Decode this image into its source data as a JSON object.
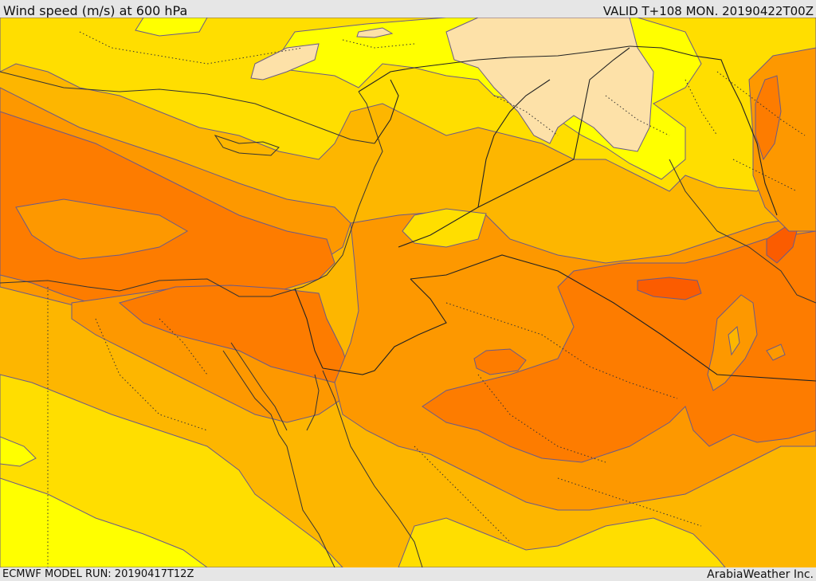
{
  "header": {
    "title": "Wind speed (m/s) at 600 hPa",
    "valid": "VALID T+108 MON. 20190422T00Z"
  },
  "footer": {
    "model_run": "ECMWF MODEL RUN: 20190417T12Z",
    "credit": "ArabiaWeather Inc."
  },
  "map": {
    "field": "wind speed 600 hPa",
    "palette": {
      "very_light": "#fde1a8",
      "light_yellow": "#ffff00",
      "yellow": "#ffde00",
      "light_orange": "#fdb600",
      "orange": "#fd9800",
      "dark_orange": "#fd7c00",
      "red_orange": "#fb5c00"
    }
  }
}
